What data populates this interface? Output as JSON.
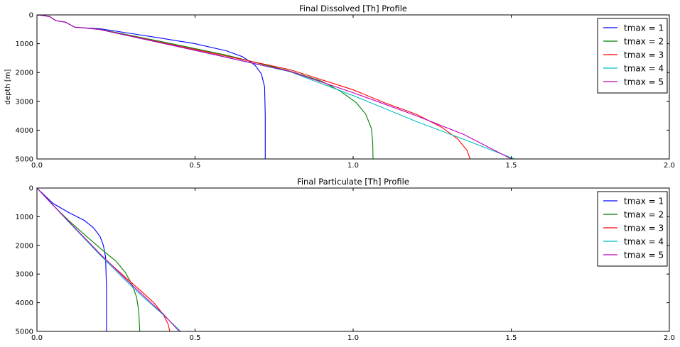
{
  "chart_data": [
    {
      "type": "line",
      "title": "Final Dissolved [Th] Profile",
      "xlabel": "",
      "ylabel": "depth [m]",
      "xlim": [
        0,
        2.0
      ],
      "ylim": [
        5000,
        0
      ],
      "y_inverted": true,
      "grid": false,
      "legend": "top-right",
      "x_ticks": [
        "0.0",
        "0.5",
        "1.0",
        "1.5",
        "2.0"
      ],
      "y_ticks": [
        "0",
        "1000",
        "2000",
        "3000",
        "4000",
        "5000"
      ],
      "series": [
        {
          "name": "tmax = 1",
          "color": "#0000ff",
          "x": [
            0,
            0.02,
            0.04,
            0.06,
            0.09,
            0.12,
            0.15,
            0.2,
            0.3,
            0.4,
            0.5,
            0.6,
            0.65,
            0.69,
            0.71,
            0.72,
            0.722,
            0.722
          ],
          "y": [
            0,
            20,
            60,
            200,
            250,
            430,
            450,
            480,
            650,
            820,
            1000,
            1250,
            1450,
            1750,
            2050,
            2500,
            3500,
            5000
          ]
        },
        {
          "name": "tmax = 2",
          "color": "#008000",
          "x": [
            0,
            0.02,
            0.04,
            0.06,
            0.09,
            0.12,
            0.15,
            0.2,
            0.4,
            0.6,
            0.8,
            0.9,
            0.96,
            1.01,
            1.04,
            1.058,
            1.062,
            1.063
          ],
          "y": [
            0,
            20,
            60,
            200,
            250,
            430,
            450,
            500,
            940,
            1400,
            1950,
            2300,
            2650,
            3050,
            3450,
            3950,
            4450,
            5000
          ]
        },
        {
          "name": "tmax = 3",
          "color": "#ff0000",
          "x": [
            0,
            0.02,
            0.04,
            0.06,
            0.09,
            0.12,
            0.15,
            0.2,
            0.5,
            0.8,
            1.0,
            1.1,
            1.2,
            1.28,
            1.33,
            1.36,
            1.37
          ],
          "y": [
            0,
            20,
            60,
            200,
            250,
            430,
            450,
            510,
            1200,
            1900,
            2600,
            3050,
            3450,
            3900,
            4300,
            4700,
            5000
          ]
        },
        {
          "name": "tmax = 4",
          "color": "#00bfbf",
          "x": [
            0,
            0.02,
            0.04,
            0.06,
            0.09,
            0.12,
            0.15,
            0.2,
            0.5,
            0.8,
            1.0,
            1.2,
            1.35,
            1.51
          ],
          "y": [
            0,
            20,
            60,
            200,
            250,
            430,
            450,
            510,
            1230,
            1970,
            2800,
            3700,
            4320,
            5000
          ]
        },
        {
          "name": "tmax = 5",
          "color": "#bf00bf",
          "x": [
            0,
            0.02,
            0.04,
            0.06,
            0.09,
            0.12,
            0.15,
            0.2,
            0.5,
            0.8,
            1.0,
            1.2,
            1.35,
            1.5
          ],
          "y": [
            0,
            20,
            60,
            200,
            250,
            430,
            450,
            510,
            1230,
            1960,
            2700,
            3500,
            4150,
            5000
          ]
        }
      ]
    },
    {
      "type": "line",
      "title": "Final Particulate [Th] Profile",
      "xlabel": "",
      "ylabel": "",
      "xlim": [
        0,
        2.0
      ],
      "ylim": [
        5000,
        0
      ],
      "y_inverted": true,
      "grid": false,
      "legend": "top-right",
      "x_ticks": [
        "0.0",
        "0.5",
        "1.0",
        "1.5",
        "2.0"
      ],
      "y_ticks": [
        "0",
        "1000",
        "2000",
        "3000",
        "4000",
        "5000"
      ],
      "series": [
        {
          "name": "tmax = 1",
          "color": "#0000ff",
          "x": [
            0,
            0.05,
            0.1,
            0.15,
            0.18,
            0.2,
            0.21,
            0.217,
            0.22,
            0.22
          ],
          "y": [
            0,
            530,
            850,
            1130,
            1400,
            1700,
            2000,
            2400,
            3500,
            5000
          ]
        },
        {
          "name": "tmax = 2",
          "color": "#008000",
          "x": [
            0,
            0.05,
            0.1,
            0.15,
            0.2,
            0.25,
            0.28,
            0.3,
            0.315,
            0.322,
            0.325
          ],
          "y": [
            0,
            590,
            1130,
            1620,
            2100,
            2550,
            2950,
            3350,
            3800,
            4300,
            5000
          ]
        },
        {
          "name": "tmax = 3",
          "color": "#ff0000",
          "x": [
            0,
            0.1,
            0.2,
            0.27,
            0.33,
            0.37,
            0.4,
            0.415,
            0.42
          ],
          "y": [
            0,
            1170,
            2320,
            3020,
            3600,
            4000,
            4420,
            4750,
            5000
          ]
        },
        {
          "name": "tmax = 4",
          "color": "#00bfbf",
          "x": [
            0,
            0.1,
            0.2,
            0.3,
            0.4,
            0.455
          ],
          "y": [
            0,
            1180,
            2340,
            3440,
            4430,
            5000
          ]
        },
        {
          "name": "tmax = 5",
          "color": "#bf00bf",
          "x": [
            0,
            0.1,
            0.2,
            0.3,
            0.4,
            0.45
          ],
          "y": [
            0,
            1160,
            2300,
            3380,
            4400,
            5000
          ]
        }
      ]
    }
  ]
}
